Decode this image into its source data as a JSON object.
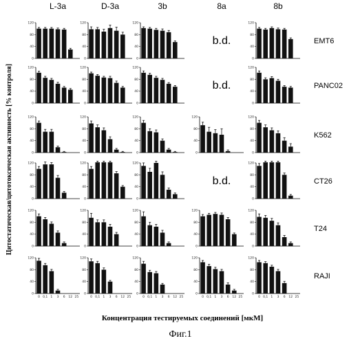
{
  "figure_caption": "Фиг.1",
  "ylabel": "Цитостатическая/цитотоксическая активность [% контроля]",
  "xlabel": "Концентрация тестируемых соединений [мкМ]",
  "bd_label": "b.d.",
  "y_ticks": [
    "0",
    "40",
    "80",
    "120"
  ],
  "x_ticks": [
    "0",
    "0,1",
    "1",
    "3",
    "6",
    "12",
    "25"
  ],
  "chart_data": {
    "type": "bar",
    "columns": [
      "L-3a",
      "D-3a",
      "3b",
      "8a",
      "8b"
    ],
    "rows": [
      "EMT6",
      "PANC02",
      "K562",
      "CT26",
      "T24",
      "RAJI"
    ],
    "categories": [
      "0",
      "0,1",
      "1",
      "3",
      "6",
      "12",
      "25"
    ],
    "ylim": [
      0,
      120
    ],
    "grid": [
      [
        {
          "values": [
            100,
            100,
            100,
            98,
            97,
            30
          ],
          "errors": [
            4,
            4,
            4,
            4,
            4,
            4
          ]
        },
        {
          "values": [
            98,
            98,
            90,
            102,
            93,
            80
          ],
          "errors": [
            8,
            6,
            8,
            10,
            12,
            8
          ]
        },
        {
          "values": [
            102,
            100,
            96,
            93,
            88,
            55
          ],
          "errors": [
            4,
            4,
            5,
            6,
            6,
            4
          ]
        },
        null,
        {
          "values": [
            100,
            97,
            102,
            98,
            97,
            65
          ],
          "errors": [
            4,
            4,
            4,
            4,
            4,
            4
          ]
        }
      ],
      [
        {
          "values": [
            102,
            85,
            78,
            65,
            52,
            45
          ],
          "errors": [
            5,
            5,
            5,
            5,
            4,
            4
          ]
        },
        {
          "values": [
            100,
            92,
            86,
            84,
            68,
            52
          ],
          "errors": [
            4,
            4,
            4,
            6,
            6,
            4
          ]
        },
        {
          "values": [
            102,
            95,
            85,
            78,
            65,
            55
          ],
          "errors": [
            6,
            5,
            5,
            5,
            4,
            4
          ]
        },
        null,
        {
          "values": [
            102,
            80,
            84,
            75,
            55,
            52
          ],
          "errors": [
            6,
            5,
            5,
            5,
            4,
            4
          ]
        }
      ],
      [
        {
          "values": [
            100,
            70,
            70,
            18,
            2
          ],
          "errors": [
            6,
            8,
            8,
            4,
            2
          ]
        },
        {
          "values": [
            98,
            85,
            75,
            45,
            10,
            2
          ],
          "errors": [
            8,
            8,
            8,
            8,
            4,
            2
          ]
        },
        {
          "values": [
            100,
            72,
            68,
            40,
            10,
            2
          ],
          "errors": [
            8,
            8,
            8,
            6,
            4,
            2
          ]
        },
        {
          "values": [
            92,
            70,
            65,
            60,
            5
          ],
          "errors": [
            10,
            15,
            12,
            20,
            4
          ]
        },
        {
          "values": [
            100,
            85,
            75,
            65,
            40,
            20
          ],
          "errors": [
            8,
            8,
            8,
            8,
            10,
            10
          ]
        }
      ],
      [
        {
          "values": [
            100,
            115,
            115,
            70,
            20
          ],
          "errors": [
            8,
            8,
            6,
            8,
            4
          ]
        },
        {
          "values": [
            100,
            122,
            122,
            122,
            85,
            40
          ],
          "errors": [
            8,
            4,
            4,
            4,
            6,
            4
          ]
        },
        {
          "values": [
            110,
            90,
            120,
            80,
            30,
            15
          ],
          "errors": [
            10,
            12,
            6,
            10,
            6,
            4
          ]
        },
        null,
        {
          "values": [
            110,
            122,
            122,
            122,
            80,
            10
          ],
          "errors": [
            8,
            4,
            4,
            4,
            6,
            4
          ]
        }
      ],
      [
        {
          "values": [
            100,
            90,
            75,
            45,
            10
          ],
          "errors": [
            8,
            6,
            6,
            6,
            4
          ]
        },
        {
          "values": [
            95,
            80,
            80,
            65,
            40
          ],
          "errors": [
            15,
            8,
            8,
            8,
            6
          ]
        },
        {
          "values": [
            100,
            70,
            65,
            45,
            10
          ],
          "errors": [
            15,
            10,
            8,
            8,
            4
          ]
        },
        {
          "values": [
            100,
            105,
            108,
            105,
            90,
            40
          ],
          "errors": [
            6,
            5,
            5,
            6,
            6,
            4
          ]
        },
        {
          "values": [
            98,
            95,
            85,
            70,
            30,
            10
          ],
          "errors": [
            10,
            8,
            8,
            8,
            6,
            4
          ]
        }
      ],
      [
        {
          "values": [
            110,
            95,
            75,
            10
          ],
          "errors": [
            8,
            6,
            6,
            4
          ]
        },
        {
          "values": [
            108,
            102,
            80,
            40
          ],
          "errors": [
            8,
            6,
            6,
            4
          ]
        },
        {
          "values": [
            100,
            72,
            68,
            30
          ],
          "errors": [
            8,
            6,
            6,
            4
          ]
        },
        {
          "values": [
            105,
            92,
            82,
            75,
            30,
            10
          ],
          "errors": [
            6,
            6,
            6,
            6,
            6,
            4
          ]
        },
        {
          "values": [
            105,
            102,
            90,
            75,
            35
          ],
          "errors": [
            6,
            5,
            5,
            6,
            6
          ]
        }
      ]
    ]
  }
}
